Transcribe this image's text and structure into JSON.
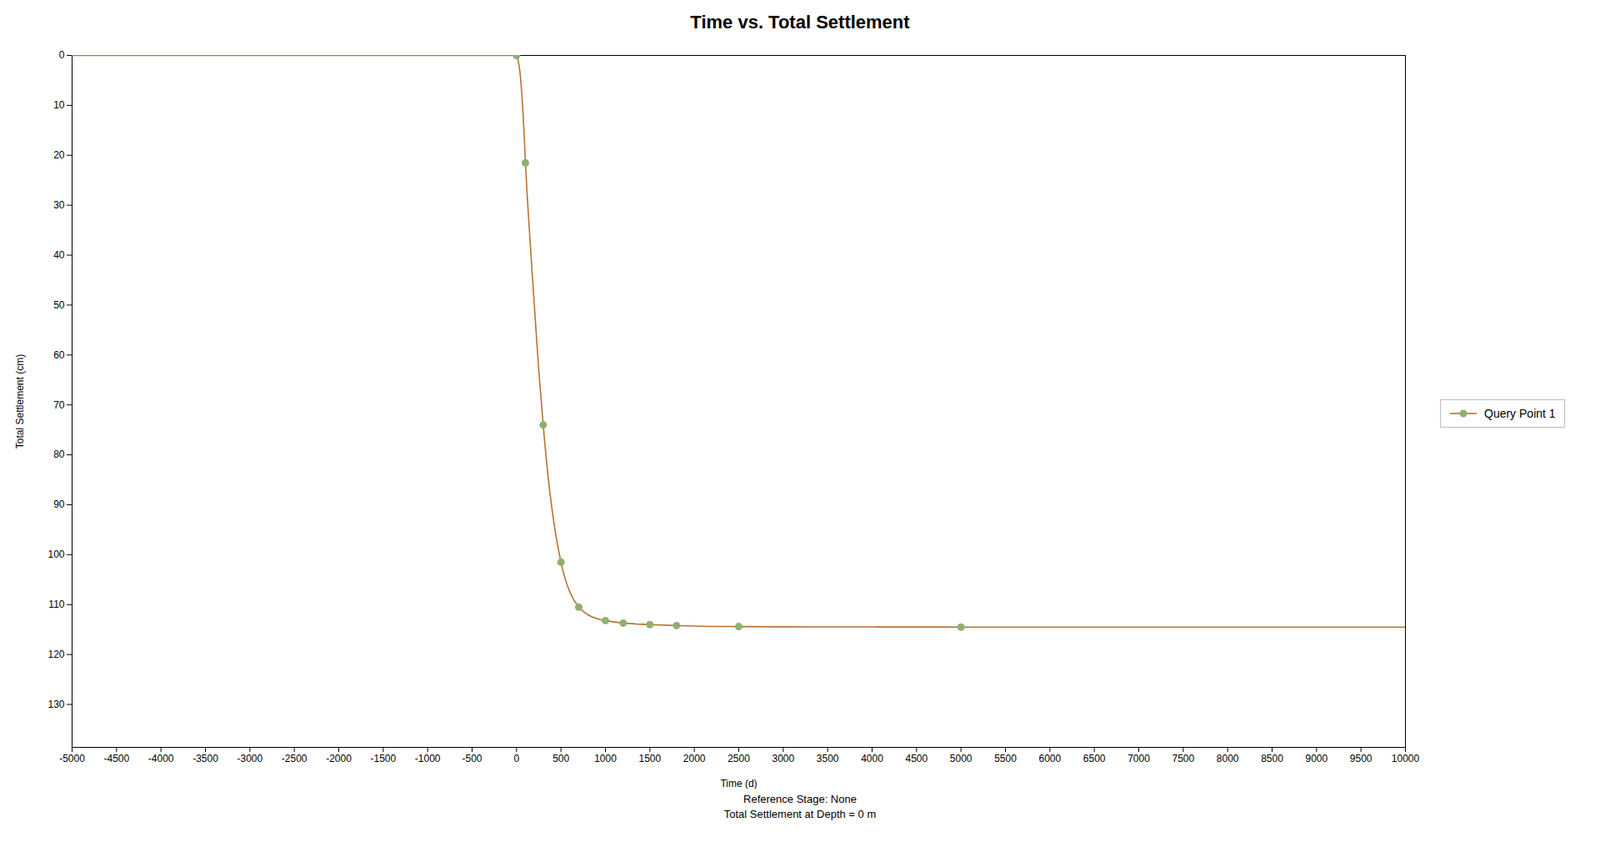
{
  "chart_data": {
    "type": "line",
    "title": "Time vs. Total Settlement",
    "xlabel": "Time (d)",
    "ylabel": "Total Settlement (cm)",
    "footer": [
      "Reference Stage: None",
      "Total Settlement at Depth = 0 m"
    ],
    "xlim": [
      -5000,
      10000
    ],
    "ylim": [
      138.597,
      0
    ],
    "xticks": [
      -5000,
      -4500,
      -4000,
      -3500,
      -3000,
      -2500,
      -2000,
      -1500,
      -1000,
      -500,
      0,
      500,
      1000,
      1500,
      2000,
      2500,
      3000,
      3500,
      4000,
      4500,
      5000,
      5500,
      6000,
      6500,
      7000,
      7500,
      8000,
      8500,
      9000,
      9500,
      10000
    ],
    "yticks": [
      0,
      10,
      20,
      30,
      40,
      50,
      60,
      70,
      80,
      90,
      100,
      110,
      120,
      130
    ],
    "grid": false,
    "legend": "right",
    "series": [
      {
        "name": "Query Point 1",
        "color": "#B87333",
        "x": [
          -5000,
          0,
          10,
          20,
          30,
          40,
          50,
          60,
          70,
          80,
          90,
          100,
          120,
          150,
          200,
          250,
          300,
          350,
          400,
          500,
          600,
          700,
          800,
          900,
          1000,
          1200,
          1500,
          1800,
          2000,
          2500,
          3000,
          3500,
          4000,
          4500,
          5000,
          10000
        ],
        "values": [
          0,
          0.0,
          0.5,
          1.2,
          2.2,
          3.6,
          5.5,
          7.8,
          10.5,
          13.8,
          17.5,
          21.5,
          28.0,
          36.5,
          50.0,
          63.0,
          74.0,
          83.5,
          91.0,
          101.5,
          107.5,
          110.5,
          112.0,
          112.8,
          113.2,
          113.7,
          114.0,
          114.2,
          114.3,
          114.4,
          114.45,
          114.47,
          114.48,
          114.49,
          114.5,
          114.5
        ],
        "marker": "circle",
        "markers": {
          "x": [
            0,
            100,
            300,
            500,
            700,
            1000,
            1200,
            1500,
            1800,
            2500,
            5000
          ],
          "values": [
            0.0,
            21.5,
            74.0,
            101.5,
            110.5,
            113.2,
            113.7,
            114.0,
            114.2,
            114.4,
            114.5
          ],
          "color": "#8FAF72"
        }
      }
    ]
  }
}
